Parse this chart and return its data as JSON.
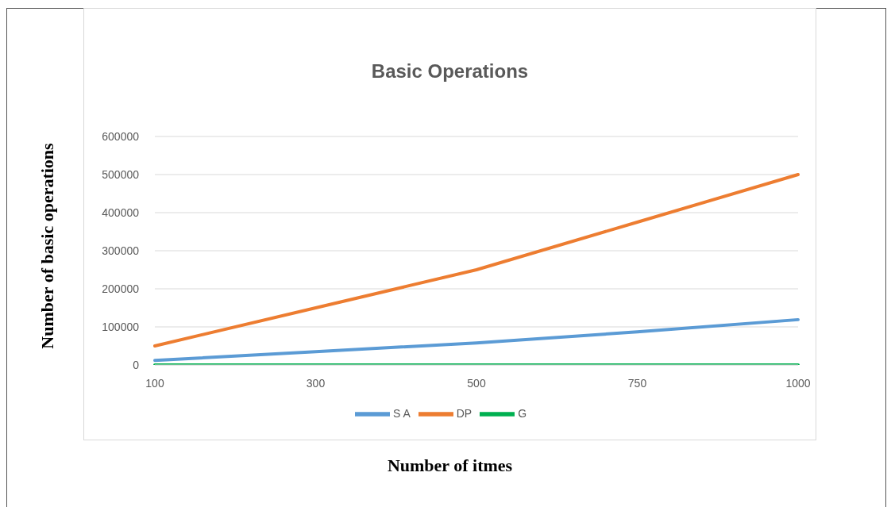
{
  "chart_data": {
    "type": "line",
    "title": "Basic Operations",
    "xlabel": "Number of itmes",
    "ylabel": "Number of basic operations",
    "categories": [
      "100",
      "300",
      "500",
      "750",
      "1000"
    ],
    "series": [
      {
        "name": "S A",
        "color": "#5b9bd5",
        "values": [
          12000,
          35000,
          58000,
          87000,
          119000
        ]
      },
      {
        "name": "DP",
        "color": "#ed7d31",
        "values": [
          50000,
          150000,
          250000,
          375000,
          500000
        ]
      },
      {
        "name": "G",
        "color": "#00b050",
        "values": [
          0,
          0,
          0,
          0,
          0
        ]
      }
    ],
    "ylim": [
      0,
      600000
    ],
    "yticks": [
      0,
      100000,
      200000,
      300000,
      400000,
      500000,
      600000
    ],
    "grid": "y",
    "legend": "bottom",
    "marker": "none",
    "line_style": "solid"
  }
}
